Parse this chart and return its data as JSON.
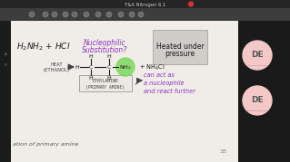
{
  "title_text": "T&A Nitrogen 6.1",
  "main_bg": "#e8e5e0",
  "content_bg": "#f0ede8",
  "right_panel_color": "#1a1a1a",
  "top_bar_color": "#252525",
  "second_bar_color": "#3d3d3d",
  "heated_box_color": "#d0cdc8",
  "heated_text": "Heated under\npressure",
  "de_color": "#f5c8c8",
  "de_text_color": "#555555",
  "purple_color": "#8b2fc0",
  "green_highlight": "#7dd860",
  "dark_text": "#1a1a1a",
  "mid_text": "#444444",
  "bottom_text": "ation of primary amine",
  "page_num": "38"
}
